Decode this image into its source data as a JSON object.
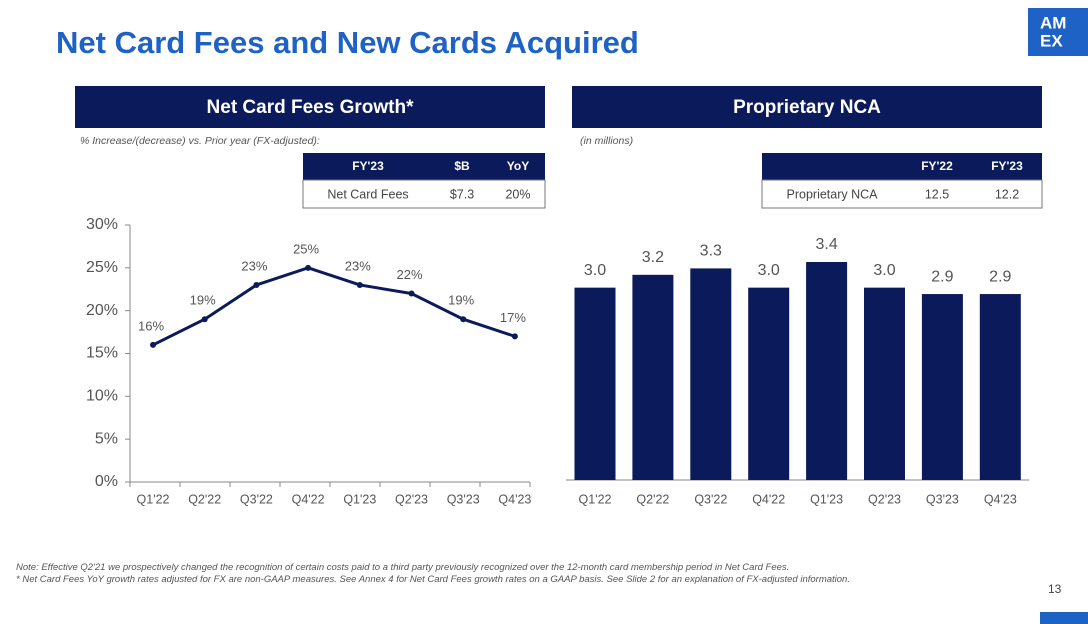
{
  "title": "Net Card Fees and New Cards Acquired",
  "logo": [
    "AM",
    "EX"
  ],
  "page_number": "13",
  "notes": [
    "Note: Effective Q2'21 we prospectively changed the recognition of certain costs paid to a third party previously recognized over the 12-month card membership period in Net Card Fees.",
    "* Net Card Fees YoY growth rates adjusted for FX are non-GAAP measures. See Annex 4 for Net Card Fees growth rates on a GAAP basis. See Slide 2 for an explanation of FX-adjusted information."
  ],
  "chart_data": [
    {
      "type": "line",
      "title": "Net Card Fees Growth*",
      "subtitle": "% Increase/(decrease) vs. Prior year (FX-adjusted):",
      "table": {
        "columns": [
          "FY'23",
          "$B",
          "YoY"
        ],
        "rows": [
          [
            "Net Card Fees",
            "$7.3",
            "20%"
          ]
        ]
      },
      "categories": [
        "Q1'22",
        "Q2'22",
        "Q3'22",
        "Q4'22",
        "Q1'23",
        "Q2'23",
        "Q3'23",
        "Q4'23"
      ],
      "values": [
        16,
        19,
        23,
        25,
        23,
        22,
        19,
        17
      ],
      "value_labels": [
        "16%",
        "19%",
        "23%",
        "25%",
        "23%",
        "22%",
        "19%",
        "17%"
      ],
      "color": "#0b1a5a",
      "ylim": [
        0,
        30
      ],
      "yticks": [
        {
          "value": 0,
          "label": "0%"
        },
        {
          "value": 5,
          "label": "5%"
        },
        {
          "value": 10,
          "label": "10%"
        },
        {
          "value": 15,
          "label": "15%"
        },
        {
          "value": 20,
          "label": "20%"
        },
        {
          "value": 25,
          "label": "25%"
        },
        {
          "value": 30,
          "label": "30%"
        }
      ]
    },
    {
      "type": "bar",
      "title": "Proprietary NCA",
      "subtitle": "(in millions)",
      "table": {
        "columns": [
          "FY'22",
          "FY'23"
        ],
        "rows": [
          [
            "Proprietary NCA",
            "12.5",
            "12.2"
          ]
        ]
      },
      "categories": [
        "Q1'22",
        "Q2'22",
        "Q3'22",
        "Q4'22",
        "Q1'23",
        "Q2'23",
        "Q3'23",
        "Q4'23"
      ],
      "values": [
        3.0,
        3.2,
        3.3,
        3.0,
        3.4,
        3.0,
        2.9,
        2.9
      ],
      "value_labels": [
        "3.0",
        "3.2",
        "3.3",
        "3.0",
        "3.4",
        "3.0",
        "2.9",
        "2.9"
      ],
      "color": "#0b1a5a"
    }
  ]
}
